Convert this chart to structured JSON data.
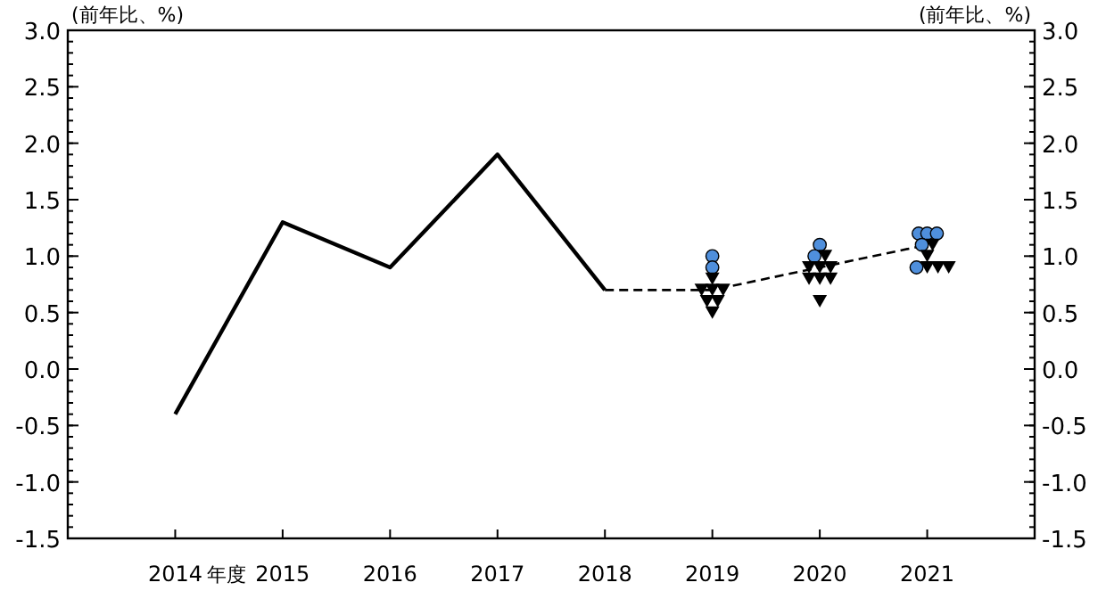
{
  "chart_data": {
    "type": "line",
    "ylabel": "(前年比、%)",
    "y2label": "(前年比、%)",
    "x": [
      2014,
      2015,
      2016,
      2017,
      2018,
      2019,
      2020,
      2021
    ],
    "xlim": [
      2013,
      2022
    ],
    "xticks": [
      2014,
      2015,
      2016,
      2017,
      2018,
      2019,
      2020,
      2021
    ],
    "annotations": [
      "年度"
    ],
    "ylim": [
      -1.5,
      3.0
    ],
    "yticks": [
      {
        "value": -1.5,
        "label": "-1.5"
      },
      {
        "value": -1.0,
        "label": "-1.0"
      },
      {
        "value": -0.5,
        "label": "-0.5"
      },
      {
        "value": 0,
        "label": "0.0"
      },
      {
        "value": 0.5,
        "label": "0.5"
      },
      {
        "value": 1.0,
        "label": "1.0"
      },
      {
        "value": 1.5,
        "label": "1.5"
      },
      {
        "value": 2.0,
        "label": "2.0"
      },
      {
        "value": 2.5,
        "label": "2.5"
      },
      {
        "value": 3.0,
        "label": "3.0"
      }
    ],
    "y2lim": [
      -1.5,
      3.0
    ],
    "y2ticks": [
      {
        "value": -1.5,
        "label": "-1.5"
      },
      {
        "value": -1.0,
        "label": "-1.0"
      },
      {
        "value": -0.5,
        "label": "-0.5"
      },
      {
        "value": 0,
        "label": "0.0"
      },
      {
        "value": 0.5,
        "label": "0.5"
      },
      {
        "value": 1.0,
        "label": "1.0"
      },
      {
        "value": 1.5,
        "label": "1.5"
      },
      {
        "value": 2.0,
        "label": "2.0"
      },
      {
        "value": 2.5,
        "label": "2.5"
      },
      {
        "value": 3.0,
        "label": "3.0"
      }
    ],
    "series": [
      {
        "color": "#000000",
        "line_style": "solid",
        "values": [
          -0.4,
          1.3,
          0.9,
          1.9,
          0.7,
          null,
          null,
          null
        ]
      },
      {
        "color": "#000000",
        "line_style": "dashed",
        "values": [
          null,
          null,
          null,
          null,
          0.7,
          0.7,
          0.9,
          1.1
        ]
      },
      {
        "type": "scatter",
        "color": "#4f8fdc",
        "marker": "circle",
        "x": [
          2019,
          2019,
          2020,
          2019.95,
          2020.92,
          2021,
          2021.09,
          2020.95,
          2020.9
        ],
        "values": [
          1.0,
          0.9,
          1.1,
          1.0,
          1.2,
          1.2,
          1.2,
          1.1,
          0.9
        ]
      },
      {
        "type": "scatter",
        "color": "#000000",
        "marker": "triangle",
        "x": [
          2019,
          2018.9,
          2019,
          2019.1,
          2018.95,
          2019.05,
          2019,
          2020.05,
          2019.9,
          2020,
          2020.1,
          2019.9,
          2020,
          2020.1,
          2020,
          2021.05,
          2021,
          2021,
          2021.1,
          2021.2
        ],
        "values": [
          0.8,
          0.7,
          0.7,
          0.7,
          0.6,
          0.6,
          0.5,
          1.0,
          0.9,
          0.9,
          0.9,
          0.8,
          0.8,
          0.8,
          0.6,
          1.1,
          1.0,
          0.9,
          0.9,
          0.9
        ]
      }
    ]
  }
}
